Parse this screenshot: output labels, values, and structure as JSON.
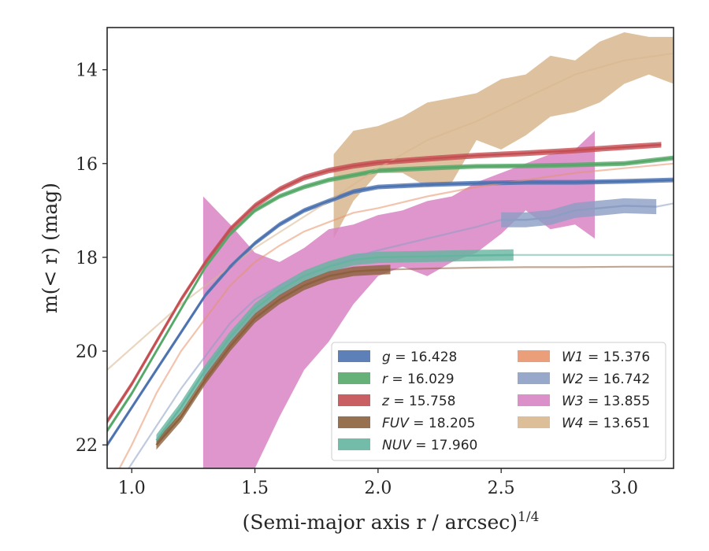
{
  "chart_data": {
    "type": "line",
    "xlabel": "(Semi-major axis r / arcsec)",
    "xlabel_var": "r",
    "xlabel_exp": "1/4",
    "ylabel": "m(< r) (mag)",
    "xlim": [
      0.9,
      3.2
    ],
    "ylim": [
      22.5,
      13.1
    ],
    "y_inverted": true,
    "x_ticks": [
      1.0,
      1.5,
      2.0,
      2.5,
      3.0
    ],
    "x_tick_labels": [
      "1.0",
      "1.5",
      "2.0",
      "2.5",
      "3.0"
    ],
    "y_ticks": [
      14,
      16,
      18,
      20,
      22
    ],
    "y_tick_labels": [
      "14",
      "16",
      "18",
      "20",
      "22"
    ],
    "grid": false,
    "legend_position": "lower-right",
    "legend_columns": 2,
    "series": [
      {
        "name": "g",
        "label_value": "16.428",
        "color": "#4c72b0",
        "band_width": 0.05,
        "x": [
          0.9,
          1.0,
          1.1,
          1.2,
          1.3,
          1.4,
          1.5,
          1.6,
          1.7,
          1.8,
          1.9,
          2.0,
          2.2,
          2.4,
          2.6,
          2.8,
          3.0,
          3.2
        ],
        "y": [
          22.0,
          21.2,
          20.4,
          19.6,
          18.8,
          18.2,
          17.7,
          17.3,
          17.0,
          16.8,
          16.6,
          16.5,
          16.45,
          16.42,
          16.4,
          16.4,
          16.38,
          16.35
        ],
        "solid_end": 3.2
      },
      {
        "name": "r",
        "label_value": "16.029",
        "color": "#55a868",
        "band_width": 0.05,
        "x": [
          0.9,
          1.0,
          1.1,
          1.2,
          1.3,
          1.4,
          1.5,
          1.6,
          1.7,
          1.8,
          1.9,
          2.0,
          2.2,
          2.4,
          2.6,
          2.8,
          3.0,
          3.2
        ],
        "y": [
          21.7,
          20.9,
          20.0,
          19.1,
          18.2,
          17.5,
          17.0,
          16.7,
          16.5,
          16.35,
          16.25,
          16.15,
          16.1,
          16.06,
          16.05,
          16.03,
          16.0,
          15.88
        ],
        "solid_end": 3.2
      },
      {
        "name": "z",
        "label_value": "15.758",
        "color": "#c44e52",
        "band_width": 0.06,
        "x": [
          0.9,
          1.0,
          1.1,
          1.2,
          1.3,
          1.4,
          1.5,
          1.6,
          1.7,
          1.8,
          1.9,
          2.0,
          2.2,
          2.4,
          2.6,
          2.8,
          3.0,
          3.15
        ],
        "y": [
          21.5,
          20.7,
          19.8,
          18.9,
          18.1,
          17.4,
          16.9,
          16.55,
          16.3,
          16.15,
          16.05,
          15.98,
          15.9,
          15.83,
          15.78,
          15.72,
          15.65,
          15.6
        ],
        "solid_end": 3.15
      },
      {
        "name": "FUV",
        "label_value": "18.205",
        "color": "#8c613c",
        "band_width": 0.1,
        "x": [
          1.1,
          1.2,
          1.3,
          1.4,
          1.5,
          1.6,
          1.7,
          1.8,
          1.9,
          2.0,
          2.05,
          2.2,
          2.4,
          2.6,
          2.8,
          3.0,
          3.2
        ],
        "y": [
          22.0,
          21.4,
          20.6,
          19.9,
          19.3,
          18.9,
          18.6,
          18.4,
          18.3,
          18.27,
          18.26,
          18.24,
          18.22,
          18.21,
          18.21,
          18.2,
          18.2
        ],
        "solid_end": 2.05
      },
      {
        "name": "NUV",
        "label_value": "17.960",
        "color": "#64b5a0",
        "band_width": 0.12,
        "x": [
          1.1,
          1.2,
          1.3,
          1.4,
          1.5,
          1.6,
          1.7,
          1.8,
          1.9,
          2.0,
          2.2,
          2.4,
          2.55,
          2.8,
          3.0,
          3.2
        ],
        "y": [
          21.9,
          21.2,
          20.4,
          19.7,
          19.1,
          18.7,
          18.4,
          18.2,
          18.05,
          18.0,
          17.98,
          17.96,
          17.95,
          17.95,
          17.95,
          17.95
        ],
        "solid_end": 2.55
      },
      {
        "name": "W1",
        "label_value": "15.376",
        "color": "#e8936b",
        "x": [
          0.9,
          1.0,
          1.1,
          1.2,
          1.3,
          1.4,
          1.5,
          1.6,
          1.7,
          1.8,
          1.9,
          2.0,
          2.2,
          2.4,
          2.6,
          2.8,
          3.0,
          3.2
        ],
        "y": [
          23.0,
          22.0,
          20.9,
          20.0,
          19.3,
          18.6,
          18.1,
          17.75,
          17.45,
          17.25,
          17.05,
          16.95,
          16.7,
          16.5,
          16.35,
          16.2,
          16.1,
          16.0
        ],
        "solid_end": 0.0
      },
      {
        "name": "W2",
        "label_value": "16.742",
        "color": "#8c9ec4",
        "band_width": 0.16,
        "x": [
          0.95,
          1.1,
          1.2,
          1.3,
          1.4,
          1.5,
          1.6,
          1.7,
          1.8,
          1.9,
          2.0,
          2.2,
          2.4,
          2.5,
          2.6,
          2.7,
          2.8,
          2.9,
          3.0,
          3.13,
          3.2
        ],
        "y": [
          22.8,
          21.6,
          20.8,
          20.1,
          19.4,
          18.9,
          18.6,
          18.4,
          18.2,
          18.0,
          17.85,
          17.6,
          17.35,
          17.2,
          17.2,
          17.15,
          17.0,
          16.95,
          16.9,
          16.92,
          16.85
        ],
        "solid_end": 3.13,
        "band_start": 2.5
      },
      {
        "name": "W3",
        "label_value": "13.855",
        "color": "#d884c4",
        "band_x": [
          1.29,
          1.4,
          1.5,
          1.6,
          1.7,
          1.8,
          1.9,
          2.0,
          2.1,
          2.2,
          2.3,
          2.4,
          2.5,
          2.6,
          2.7,
          2.8,
          2.88
        ],
        "band_upper": [
          16.7,
          17.3,
          17.9,
          18.1,
          17.8,
          17.4,
          17.3,
          17.1,
          17.0,
          16.8,
          16.7,
          16.4,
          16.2,
          16.0,
          15.8,
          15.7,
          15.3
        ],
        "band_lower": [
          22.5,
          22.5,
          22.5,
          21.4,
          20.4,
          19.8,
          19.0,
          18.4,
          18.2,
          18.4,
          18.1,
          17.9,
          17.5,
          17.0,
          17.4,
          17.3,
          17.6
        ]
      },
      {
        "name": "W4",
        "label_value": "13.651",
        "color": "#d8b78e",
        "x": [
          0.9,
          1.2,
          1.5,
          1.8,
          2.0,
          2.2,
          2.4,
          2.6,
          2.8,
          3.0,
          3.2
        ],
        "y": [
          20.4,
          19.0,
          17.8,
          16.8,
          16.1,
          15.5,
          15.1,
          14.6,
          14.1,
          13.8,
          13.65
        ],
        "band_x": [
          1.82,
          1.9,
          2.0,
          2.1,
          2.2,
          2.3,
          2.4,
          2.5,
          2.6,
          2.7,
          2.8,
          2.9,
          3.0,
          3.1,
          3.2
        ],
        "band_upper": [
          15.8,
          15.3,
          15.2,
          15.0,
          14.7,
          14.6,
          14.5,
          14.2,
          14.1,
          13.7,
          13.8,
          13.4,
          13.2,
          13.3,
          13.3
        ],
        "band_lower": [
          17.6,
          16.8,
          16.2,
          16.2,
          16.5,
          16.4,
          15.5,
          15.7,
          15.4,
          15.0,
          14.9,
          14.7,
          14.3,
          14.1,
          14.3
        ]
      }
    ]
  }
}
